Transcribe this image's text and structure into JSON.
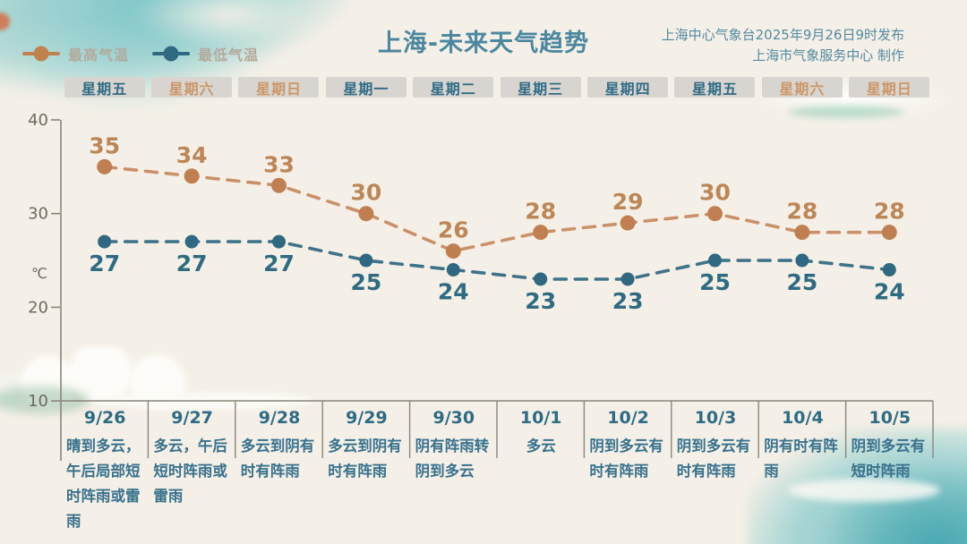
{
  "header": {
    "title": "上海-未来天气趋势",
    "source_line1": "上海中心气象台2025年9月26日9时发布",
    "source_line2": "上海市气象服务中心 制作",
    "legend": [
      {
        "name": "high-temp",
        "label": "最高气温",
        "color": "#c1814f"
      },
      {
        "name": "low-temp",
        "label": "最低气温",
        "color": "#2f6a82"
      }
    ]
  },
  "weekday_row": [
    {
      "label": "星期五",
      "weekend": false
    },
    {
      "label": "星期六",
      "weekend": true
    },
    {
      "label": "星期日",
      "weekend": true
    },
    {
      "label": "星期一",
      "weekend": false
    },
    {
      "label": "星期二",
      "weekend": false
    },
    {
      "label": "星期三",
      "weekend": false
    },
    {
      "label": "星期四",
      "weekend": false
    },
    {
      "label": "星期五",
      "weekend": false
    },
    {
      "label": "星期六",
      "weekend": true
    },
    {
      "label": "星期日",
      "weekend": true
    }
  ],
  "chart_data": {
    "type": "line",
    "line_style": "dashed",
    "x": [
      "9/26",
      "9/27",
      "9/28",
      "9/29",
      "9/30",
      "10/1",
      "10/2",
      "10/3",
      "10/4",
      "10/5"
    ],
    "series": [
      {
        "name": "最高气温",
        "values": [
          35,
          34,
          33,
          30,
          26,
          28,
          29,
          30,
          28,
          28
        ],
        "line_color": "#c9916a",
        "dot_color": "#bf7f50",
        "label_color": "#bc8758"
      },
      {
        "name": "最低气温",
        "values": [
          27,
          27,
          27,
          25,
          24,
          23,
          23,
          25,
          25,
          24
        ],
        "line_color": "#3f7389",
        "dot_color": "#2f6880",
        "label_color": "#2e6b82"
      }
    ],
    "ylabel": "℃",
    "yticks": [
      40,
      30,
      20,
      10
    ],
    "ylim": [
      10,
      40
    ],
    "grid": false,
    "legend_position": "top-left",
    "title": "上海-未来天气趋势"
  },
  "forecast": [
    {
      "date": "9/26",
      "desc": "晴到多云，午后局部短时阵雨或雷雨"
    },
    {
      "date": "9/27",
      "desc": "多云，午后短时阵雨或雷雨"
    },
    {
      "date": "9/28",
      "desc": "多云到阴有时有阵雨"
    },
    {
      "date": "9/29",
      "desc": "多云到阴有时有阵雨"
    },
    {
      "date": "9/30",
      "desc": "阴有阵雨转阴到多云"
    },
    {
      "date": "10/1",
      "desc": "多云"
    },
    {
      "date": "10/2",
      "desc": "阴到多云有时有阵雨"
    },
    {
      "date": "10/3",
      "desc": "阴到多云有时有阵雨"
    },
    {
      "date": "10/4",
      "desc": "阴有时有阵雨"
    },
    {
      "date": "10/5",
      "desc": "阴到多云有短时阵雨"
    }
  ],
  "colors": {
    "background": "#f5f0e7",
    "title": "#4c87a0",
    "source_text": "#518aa2",
    "weekday_text": "#2f6b84",
    "weekend_text": "#cb9668",
    "weekday_box_bg": "#d8d5d0",
    "axis": "#8a857a",
    "tick_label": "#6e695f",
    "forecast_text": "#38718c",
    "watercolor_teal": "#62babf"
  }
}
